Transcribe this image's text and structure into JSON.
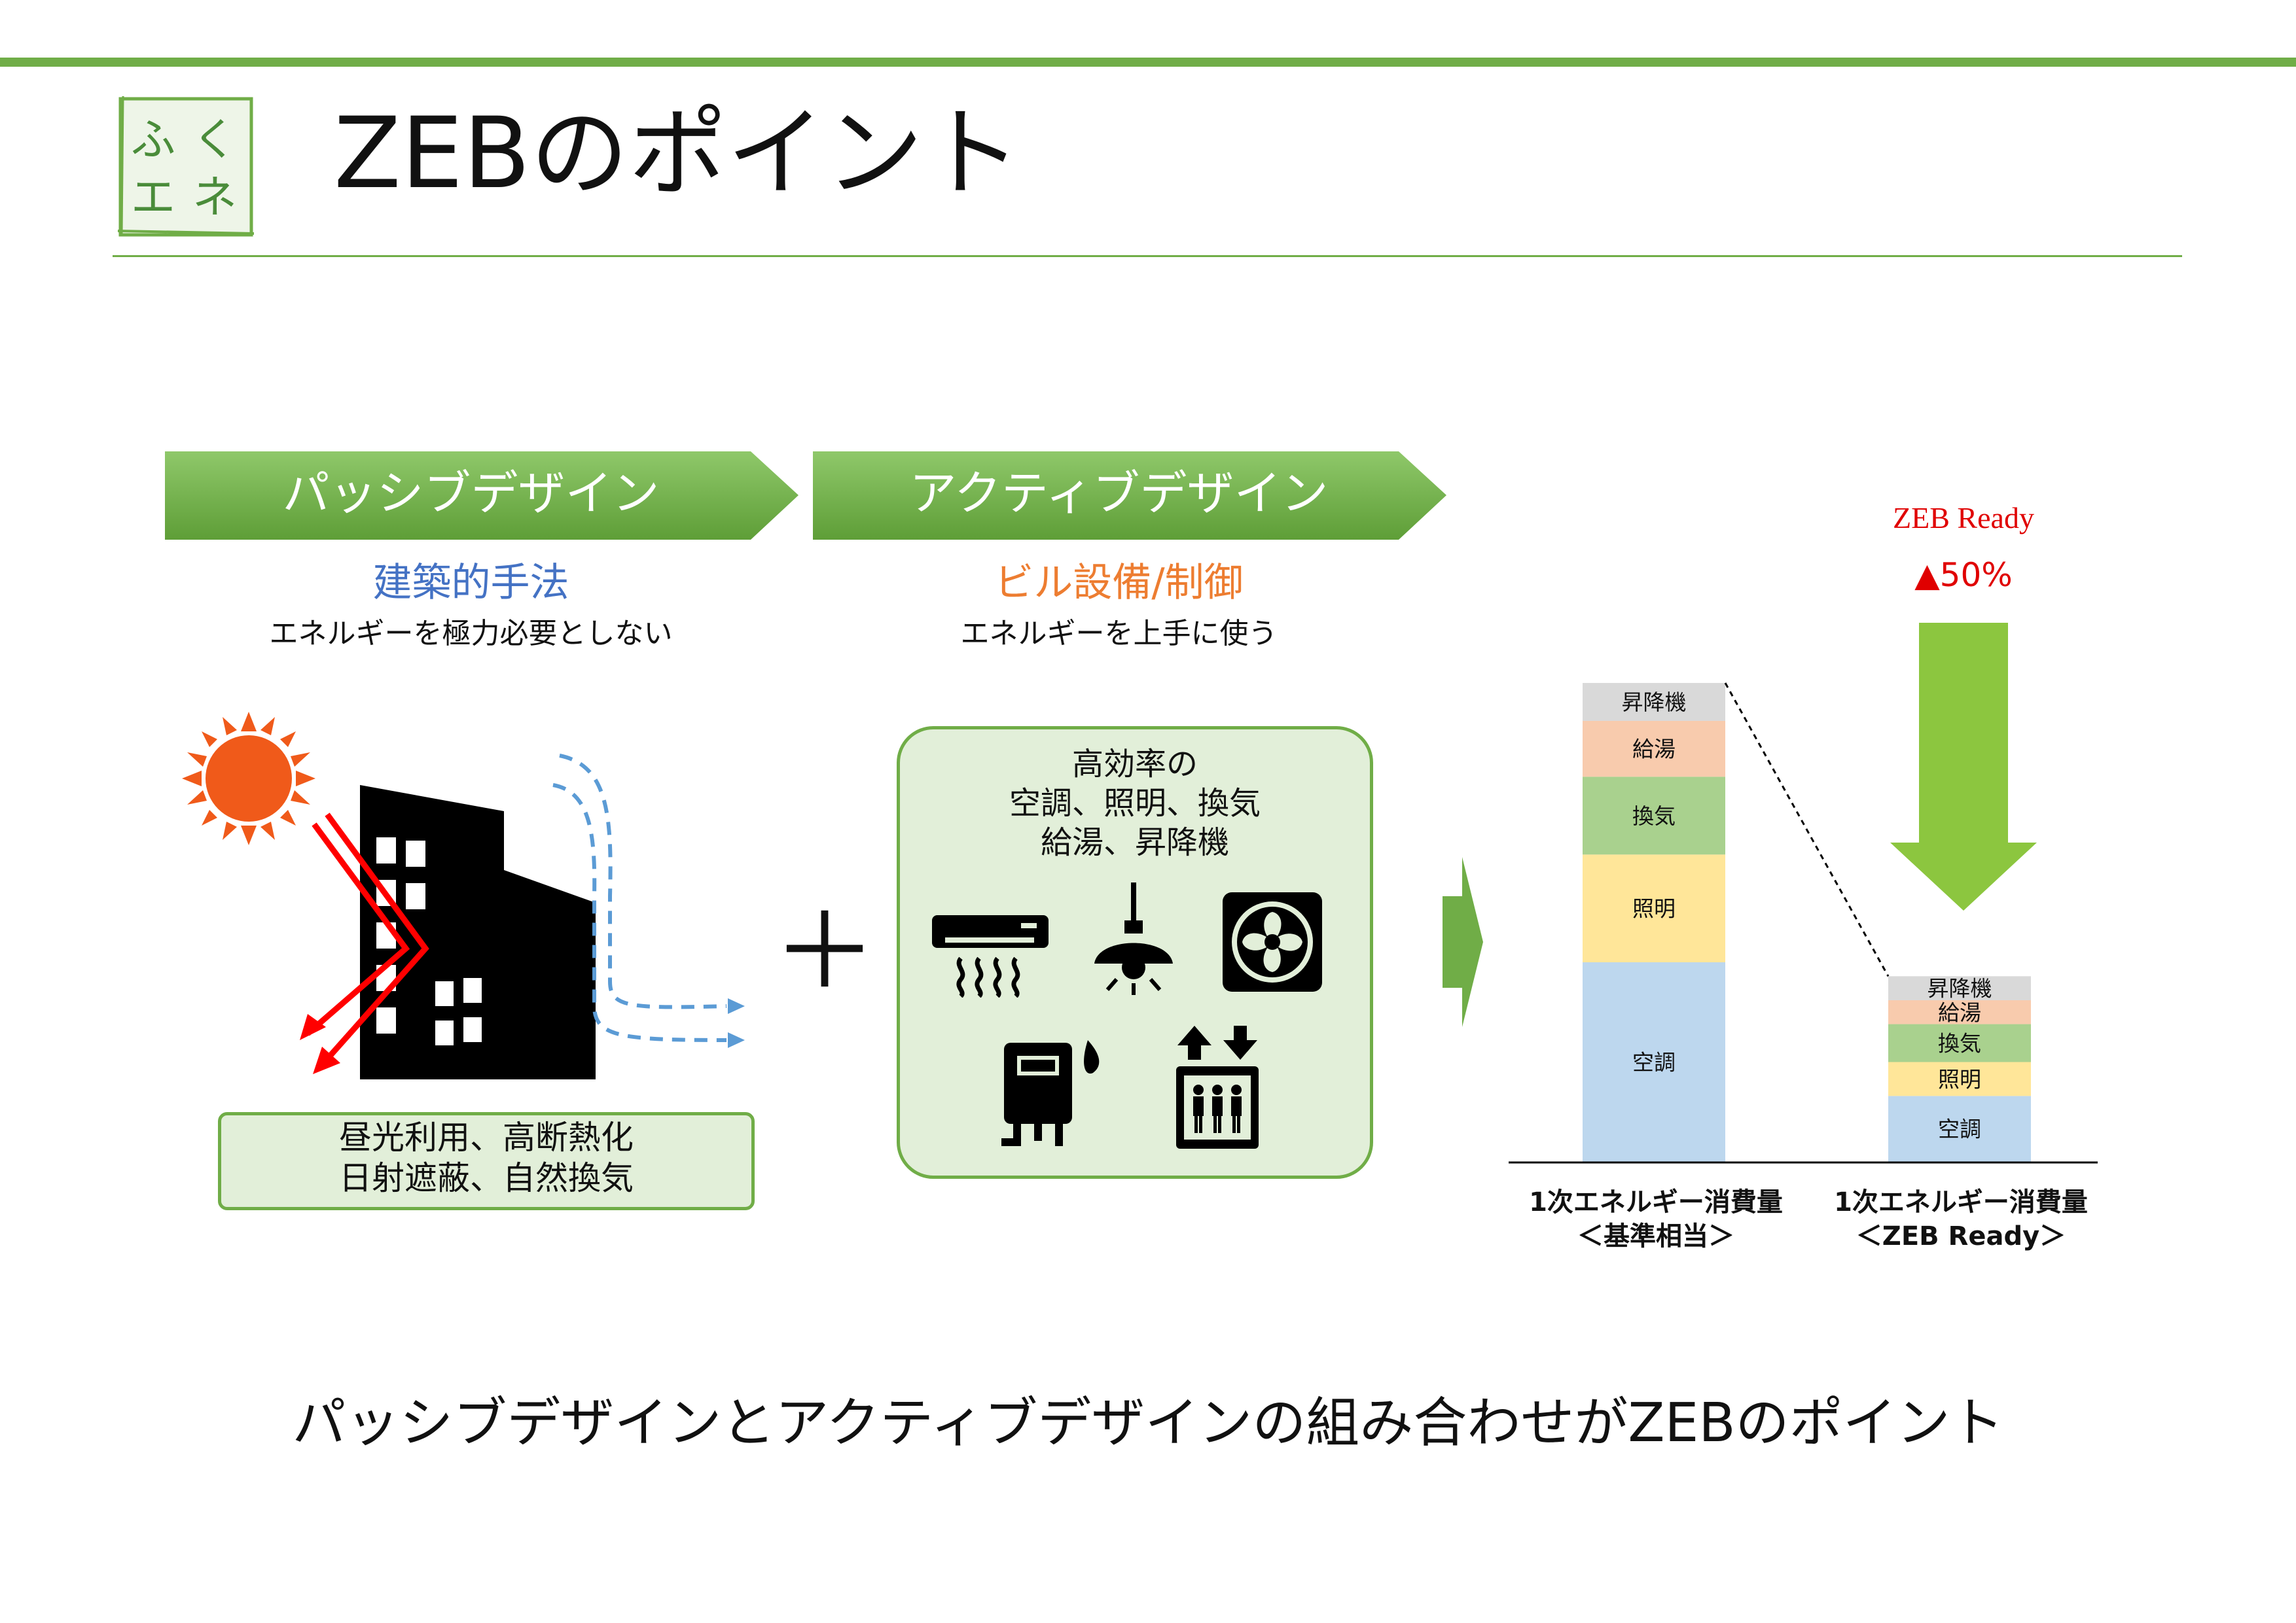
{
  "header": {
    "logo_text": [
      "ふ",
      "く",
      "エ",
      "ネ"
    ],
    "title": "ZEBのポイント"
  },
  "passive": {
    "heading": "パッシブデザイン",
    "subtitle": "建築的手法",
    "description": "エネルギーを極力必要としない",
    "box_lines": [
      "昼光利用、高断熱化",
      "日射遮蔽、自然換気"
    ]
  },
  "plus_sign": "＋",
  "active": {
    "heading": "アクティブデザイン",
    "subtitle": "ビル設備/制御",
    "description": "エネルギーを上手に使う",
    "box_lines": [
      "高効率の",
      "空調、照明、換気",
      "給湯、昇降機"
    ],
    "icons": [
      "air-conditioner-icon",
      "pendant-light-icon",
      "ventilation-fan-icon",
      "water-heater-icon",
      "elevator-icon"
    ]
  },
  "chart_data": {
    "type": "bar",
    "stacked": true,
    "categories": [
      "1次エネルギー消費量\n＜基準相当＞",
      "1次エネルギー消費量\n＜ZEB Ready＞"
    ],
    "category_lines": [
      [
        "1次エネルギー消費量",
        "＜基準相当＞"
      ],
      [
        "1次エネルギー消費量",
        "＜ZEB Ready＞"
      ]
    ],
    "series": [
      {
        "name": "空調",
        "color": "#bdd7ee",
        "values": [
          100,
          33
        ]
      },
      {
        "name": "照明",
        "color": "#ffe699",
        "values": [
          54,
          17
        ]
      },
      {
        "name": "換気",
        "color": "#a9d18e",
        "values": [
          39,
          19
        ]
      },
      {
        "name": "給湯",
        "color": "#f8cbad",
        "values": [
          28,
          12
        ]
      },
      {
        "name": "昇降機",
        "color": "#d9d9d9",
        "values": [
          19,
          12
        ]
      }
    ],
    "annotation": {
      "label": "ZEB Ready",
      "value": "▲50%",
      "color": "#e00000"
    },
    "arrow_color": "#8cc63f"
  },
  "footer": {
    "text": "パッシブデザインとアクティブデザインの組み合わせがZEBのポイント"
  },
  "colors": {
    "accent_green": "#70ad47",
    "box_fill": "#e2efd9",
    "subtitle_blue": "#4472c4",
    "subtitle_orange": "#ed7d31",
    "sun": "#f05a1a",
    "light_arrow": "#ff0000",
    "wind_arrow": "#5b9bd5"
  }
}
